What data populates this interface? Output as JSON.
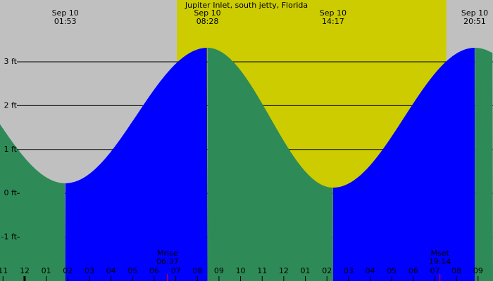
{
  "chart_data": {
    "type": "tide",
    "title": "Jupiter Inlet, south jetty, Florida",
    "extremes": [
      {
        "date": "Sep 10",
        "time": "01:53",
        "height": 0.23
      },
      {
        "date": "Sep 10",
        "time": "08:28",
        "height": 3.32
      },
      {
        "date": "Sep 10",
        "time": "14:17",
        "height": 0.13
      },
      {
        "date": "Sep 10",
        "time": "20:51",
        "height": 3.32
      }
    ],
    "sunrise_hours": 7.05,
    "sunset_hours": 19.53,
    "moon": [
      {
        "label": "Mrise",
        "time": "06:37"
      },
      {
        "label": "Mset",
        "time": "19:14"
      }
    ],
    "xlim": [
      -1.14,
      21.69
    ],
    "xticks": [
      {
        "value": -1,
        "label": "11"
      },
      {
        "value": 0,
        "label": "12"
      },
      {
        "value": 1,
        "label": "01"
      },
      {
        "value": 2,
        "label": "02"
      },
      {
        "value": 3,
        "label": "03"
      },
      {
        "value": 4,
        "label": "04"
      },
      {
        "value": 5,
        "label": "05"
      },
      {
        "value": 6,
        "label": "06"
      },
      {
        "value": 7,
        "label": "07"
      },
      {
        "value": 8,
        "label": "08"
      },
      {
        "value": 9,
        "label": "09"
      },
      {
        "value": 10,
        "label": "10"
      },
      {
        "value": 11,
        "label": "11"
      },
      {
        "value": 12,
        "label": "12"
      },
      {
        "value": 13,
        "label": "01"
      },
      {
        "value": 14,
        "label": "02"
      },
      {
        "value": 15,
        "label": "03"
      },
      {
        "value": 16,
        "label": "04"
      },
      {
        "value": 17,
        "label": "05"
      },
      {
        "value": 18,
        "label": "06"
      },
      {
        "value": 19,
        "label": "07"
      },
      {
        "value": 20,
        "label": "08"
      },
      {
        "value": 21,
        "label": "09"
      }
    ],
    "ylim": [
      -2.0,
      4.41
    ],
    "yticks": [
      {
        "value": -1,
        "label": "-1 ft"
      },
      {
        "value": 0,
        "label": "0 ft"
      },
      {
        "value": 1,
        "label": "1 ft"
      },
      {
        "value": 2,
        "label": "2 ft"
      },
      {
        "value": 3,
        "label": "3 ft"
      }
    ],
    "night_color": "#c0c0c0",
    "day_color": "#cccc00",
    "rising_color": "#0000ff",
    "falling_color": "#2e8b57"
  }
}
